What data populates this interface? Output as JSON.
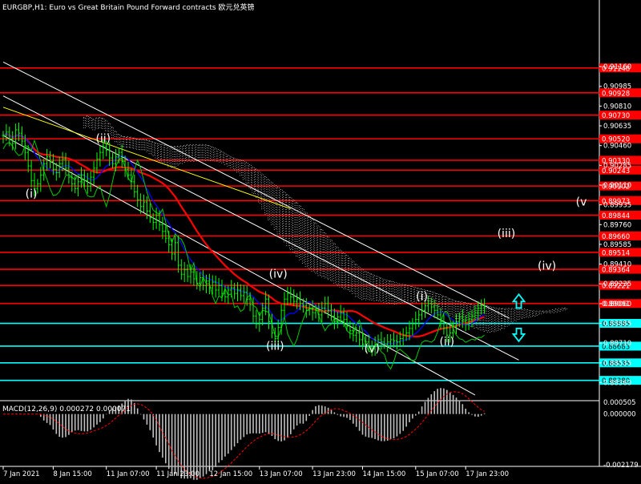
{
  "window": {
    "title": "EURGBP,H1:  Euro vs Great Britain Pound Forward contracts 欧元兑英镑",
    "symbol": "EURGBP",
    "timeframe": "H1"
  },
  "colors": {
    "background": "#000000",
    "price_bar": "#00ff00",
    "resistance_line": "#ff0000",
    "support_line": "#00ffff",
    "label_box": "#ff0000",
    "support_label_box": "#00ffff",
    "channel": "#ffffff",
    "ma_red": "#ff0000",
    "ma_blue": "#0000ff",
    "ma_yellow": "#ffff00",
    "rsi_green": "#00cc00",
    "macd_hist": "#c0c0c0",
    "macd_signal": "#ff0000",
    "arrow": "#00ffff",
    "axis_text": "#ffffff"
  },
  "chart_data": {
    "type": "candlestick",
    "title": "EURGBP,H1:  Euro vs Great Britain Pound Forward contracts 欧元兑英镑",
    "ylim": [
      0.882,
      0.9175
    ],
    "price_ticks": [
      "0.91160",
      "0.90985",
      "0.90810",
      "0.90635",
      "0.90460",
      "0.90285",
      "0.90110",
      "0.89935",
      "0.89760",
      "0.89585",
      "0.89410",
      "0.89235",
      "0.89060",
      "0.88885",
      "0.88710",
      "0.88535",
      "0.88360"
    ],
    "time_ticks": [
      "7 Jan 2021",
      "8 Jan 15:00",
      "11 Jan 07:00",
      "11 Jan 23:00",
      "12 Jan 15:00",
      "13 Jan 07:00",
      "13 Jan 23:00",
      "14 Jan 15:00",
      "15 Jan 07:00",
      "17 Jan 23:00"
    ],
    "resistance_levels": [
      "0.91148",
      "0.90928",
      "0.90730",
      "0.90520",
      "0.90330",
      "0.90243",
      "0.90102",
      "0.89973",
      "0.89844",
      "0.89660",
      "0.89514",
      "0.89364",
      "0.89221",
      "0.89061"
    ],
    "support_levels": [
      "0.88885",
      "0.88683",
      "0.88535",
      "0.88380"
    ],
    "wave_labels": [
      {
        "label": "(i)",
        "bar": 9,
        "price": 0.9
      },
      {
        "label": "(ii)",
        "bar": 32,
        "price": 0.9049
      },
      {
        "label": "(iii)",
        "bar": 87,
        "price": 0.8865
      },
      {
        "label": "(iv)",
        "bar": 88,
        "price": 0.8929
      },
      {
        "label": "(v)",
        "bar": 118,
        "price": 0.8863
      },
      {
        "label": "(i)",
        "bar": 134,
        "price": 0.8909
      },
      {
        "label": "(ii)",
        "bar": 142,
        "price": 0.8869
      },
      {
        "label": "(iii)",
        "bar": 161,
        "price": 0.8965
      },
      {
        "label": "(iv)",
        "bar": 174,
        "price": 0.8936
      },
      {
        "label": "(v",
        "bar": 185,
        "price": 0.8993
      }
    ],
    "close": [
      0.9055,
      0.9058,
      0.9052,
      0.9048,
      0.906,
      0.9057,
      0.905,
      0.904,
      0.9028,
      0.9015,
      0.9008,
      0.9012,
      0.902,
      0.903,
      0.9036,
      0.9032,
      0.9025,
      0.9022,
      0.903,
      0.9034,
      0.9026,
      0.9018,
      0.9012,
      0.9008,
      0.9014,
      0.902,
      0.9015,
      0.901,
      0.9018,
      0.9026,
      0.9034,
      0.904,
      0.9045,
      0.9042,
      0.9035,
      0.903,
      0.9036,
      0.904,
      0.9032,
      0.9025,
      0.902,
      0.9014,
      0.9005,
      0.8998,
      0.8992,
      0.8996,
      0.8988,
      0.8982,
      0.8978,
      0.8984,
      0.8976,
      0.897,
      0.8964,
      0.8958,
      0.895,
      0.896,
      0.894,
      0.8932,
      0.8936,
      0.893,
      0.8934,
      0.8928,
      0.8924,
      0.8929,
      0.8922,
      0.8926,
      0.892,
      0.8925,
      0.8918,
      0.8922,
      0.8915,
      0.8912,
      0.8918,
      0.892,
      0.8915,
      0.8918,
      0.8913,
      0.8916,
      0.891,
      0.8905,
      0.8895,
      0.8888,
      0.8892,
      0.8902,
      0.891,
      0.889,
      0.888,
      0.8875,
      0.8885,
      0.89,
      0.891,
      0.8915,
      0.8912,
      0.8908,
      0.891,
      0.8906,
      0.8904,
      0.89,
      0.8902,
      0.8898,
      0.89,
      0.8896,
      0.8902,
      0.8906,
      0.89,
      0.8895,
      0.889,
      0.8894,
      0.8898,
      0.8892,
      0.8886,
      0.8882,
      0.8878,
      0.888,
      0.8874,
      0.887,
      0.8872,
      0.8868,
      0.8866,
      0.887,
      0.8874,
      0.8872,
      0.887,
      0.8872,
      0.8874,
      0.8873,
      0.8872,
      0.8875,
      0.8878,
      0.888,
      0.8884,
      0.8888,
      0.8892,
      0.8896,
      0.89,
      0.8904,
      0.8906,
      0.8903,
      0.89,
      0.8896,
      0.889,
      0.8884,
      0.8878,
      0.888,
      0.8886,
      0.889,
      0.8894,
      0.8891,
      0.8888,
      0.8892,
      0.8895,
      0.8898,
      0.8902,
      0.8904,
      0.8903
    ],
    "macd": {
      "label": "MACD(12,26,9) 0.000272 0.000071",
      "ylim": [
        -0.002179,
        0.000505
      ],
      "ticks": [
        "0.000505",
        "0.000000",
        "-0.002179"
      ]
    },
    "arrows": [
      {
        "direction": "up",
        "bar": 165,
        "price": 0.89
      },
      {
        "direction": "down",
        "bar": 165,
        "price": 0.8884
      }
    ]
  }
}
